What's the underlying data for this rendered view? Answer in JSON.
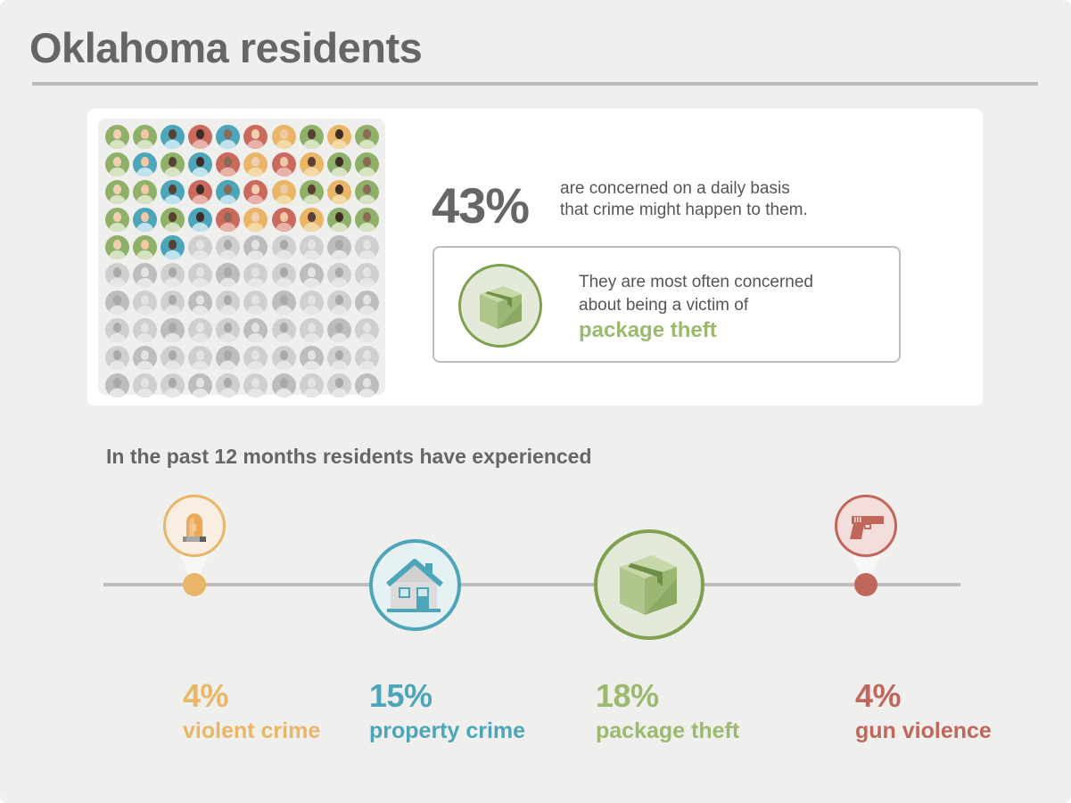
{
  "header": {
    "title": "Oklahoma residents"
  },
  "concern": {
    "percent": "43%",
    "text_line1": "are concerned on a daily basis",
    "text_line2": "that crime might happen to them.",
    "grid_total": 100,
    "grid_highlighted": 43,
    "callout": {
      "line1": "They are most often concerned",
      "line2": "about being a victim of",
      "highlight": "package theft",
      "icon": "package-box-icon"
    }
  },
  "experienced": {
    "heading": "In the past 12 months residents have experienced",
    "items": [
      {
        "percent": "4%",
        "label": "violent crime",
        "icon": "siren-icon",
        "color": "#e9b567"
      },
      {
        "percent": "15%",
        "label": "property crime",
        "icon": "house-icon",
        "color": "#4ca5b8"
      },
      {
        "percent": "18%",
        "label": "package theft",
        "icon": "package-box-icon",
        "color": "#9cba6e"
      },
      {
        "percent": "4%",
        "label": "gun violence",
        "icon": "handgun-icon",
        "color": "#c1665a"
      }
    ]
  },
  "colors": {
    "text": "#666666",
    "green": "#9cba6e",
    "green_dark": "#7fa14f",
    "teal": "#4ca5b8",
    "orange": "#e9b567",
    "red": "#c1665a",
    "gray_avatar": "#c9c9c9"
  },
  "chart_data": {
    "type": "bar",
    "title": "In the past 12 months residents have experienced",
    "categories": [
      "violent crime",
      "property crime",
      "package theft",
      "gun violence"
    ],
    "values": [
      4,
      15,
      18,
      4
    ],
    "unit": "%",
    "extra": {
      "concerned_daily_percent": 43,
      "most_concerned_about": "package theft"
    }
  }
}
